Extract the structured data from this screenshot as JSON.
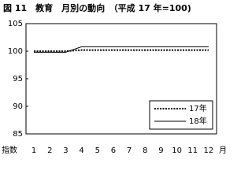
{
  "chart_data": {
    "type": "line",
    "title": "図 11　教育　月別の動向　（平成 17 年=100)",
    "y_label": "指数",
    "x_label": "月",
    "categories": [
      "1",
      "2",
      "3",
      "4",
      "5",
      "6",
      "7",
      "8",
      "9",
      "10",
      "11",
      "12"
    ],
    "series": [
      {
        "name": "17年",
        "color": "#000000",
        "dash": true,
        "values": [
          100,
          100,
          100,
          100.2,
          100.2,
          100.2,
          100.2,
          100.2,
          100.2,
          100.2,
          100.2,
          100.2
        ]
      },
      {
        "name": "18年",
        "color": "#000000",
        "dash": false,
        "values": [
          99.8,
          99.8,
          99.8,
          100.8,
          100.8,
          100.8,
          100.8,
          100.8,
          100.8,
          100.8,
          100.8,
          100.8
        ]
      }
    ],
    "ylim": [
      85,
      105
    ],
    "yticks": [
      85,
      90,
      95,
      100,
      105
    ],
    "grid": false,
    "legend": "lower right"
  }
}
